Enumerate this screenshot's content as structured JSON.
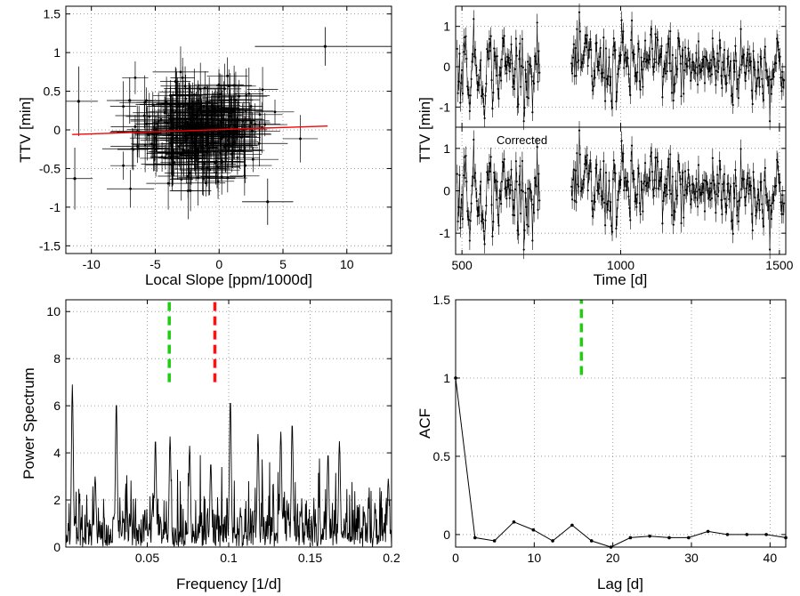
{
  "chart_data": [
    {
      "id": "ttv-vs-slope",
      "type": "scatter",
      "xlabel": "Local Slope [ppm/1000d]",
      "ylabel": "TTV [min]",
      "xlim": [
        -12,
        13.5
      ],
      "ylim": [
        -1.6,
        1.6
      ],
      "xticks": [
        -10,
        -5,
        0,
        5,
        10
      ],
      "yticks": [
        -1.5,
        -1,
        -0.5,
        0,
        0.5,
        1,
        1.5
      ],
      "grid": true,
      "fit_line": {
        "x": [
          -11.5,
          8.5
        ],
        "y": [
          -0.06,
          0.05
        ],
        "color": "#ff0000"
      },
      "outliers": [
        {
          "x": 8.3,
          "y": 1.08,
          "xerr": 5.5,
          "yerr": 0.25
        },
        {
          "x": -11.0,
          "y": 0.37,
          "xerr": 1.5,
          "yerr": 0.45
        },
        {
          "x": -11.3,
          "y": -0.63,
          "xerr": 1.4,
          "yerr": 0.4
        },
        {
          "x": -7.0,
          "y": 0.38,
          "xerr": 1.8,
          "yerr": 0.3
        },
        {
          "x": 3.8,
          "y": -0.93,
          "xerr": 2.0,
          "yerr": 0.3
        }
      ],
      "cloud": {
        "n": 320,
        "x_center": -1.5,
        "x_sd": 2.4,
        "y_center": 0.0,
        "y_sd": 0.3,
        "xerr": 1.8,
        "yerr": 0.25
      }
    },
    {
      "id": "ttv-vs-time",
      "type": "scatter",
      "xlabel": "Time [d]",
      "ylabel": "TTV [min]",
      "xlim": [
        480,
        1520
      ],
      "xticks": [
        500,
        1000,
        1500
      ],
      "subpanels": [
        {
          "label": "",
          "ylim": [
            -1.5,
            1.5
          ],
          "yticks": [
            -1,
            0,
            1
          ]
        },
        {
          "label": "Corrected",
          "ylim": [
            -1.5,
            1.5
          ],
          "yticks": [
            -1,
            0,
            1
          ]
        }
      ],
      "segments": [
        [
          485,
          745
        ],
        [
          845,
          1515
        ]
      ],
      "cadence_days": 2.47,
      "scatter_sd": 0.45,
      "yerr": 0.22,
      "grid": true
    },
    {
      "id": "power-spectrum",
      "type": "line",
      "xlabel": "Frequency [1/d]",
      "ylabel": "Power Spectrum",
      "xlim": [
        0,
        0.2
      ],
      "ylim": [
        0,
        10.5
      ],
      "xticks": [
        0.05,
        0.1,
        0.15,
        0.2
      ],
      "yticks": [
        0,
        2,
        4,
        6,
        8,
        10
      ],
      "grid": true,
      "peaks": [
        {
          "f": 0.004,
          "p": 6.9
        },
        {
          "f": 0.031,
          "p": 6.2
        },
        {
          "f": 0.101,
          "p": 6.3
        },
        {
          "f": 0.055,
          "p": 4.6
        },
        {
          "f": 0.064,
          "p": 4.7
        },
        {
          "f": 0.076,
          "p": 4.3
        },
        {
          "f": 0.118,
          "p": 4.8
        },
        {
          "f": 0.132,
          "p": 4.9
        },
        {
          "f": 0.139,
          "p": 5.3
        },
        {
          "f": 0.161,
          "p": 4.0
        },
        {
          "f": 0.168,
          "p": 4.5
        },
        {
          "f": 0.018,
          "p": 3.0
        },
        {
          "f": 0.089,
          "p": 3.6
        },
        {
          "f": 0.198,
          "p": 2.9
        }
      ],
      "markers": [
        {
          "x": 0.0635,
          "y0": 7.0,
          "y1": 10.4,
          "color": "#22cc11"
        },
        {
          "x": 0.0915,
          "y0": 7.0,
          "y1": 10.4,
          "color": "#ff1111"
        }
      ]
    },
    {
      "id": "acf",
      "type": "line",
      "xlabel": "Lag [d]",
      "ylabel": "ACF",
      "xlim": [
        0,
        42
      ],
      "ylim": [
        -0.08,
        1.5
      ],
      "xticks": [
        0,
        10,
        20,
        30,
        40
      ],
      "yticks": [
        0,
        0.5,
        1,
        1.5
      ],
      "grid": true,
      "x": [
        0,
        2.47,
        4.94,
        7.41,
        9.88,
        12.35,
        14.82,
        17.29,
        19.76,
        22.23,
        24.7,
        27.17,
        29.64,
        32.11,
        34.58,
        37.05,
        39.52,
        42
      ],
      "y": [
        1.0,
        -0.02,
        -0.04,
        0.08,
        0.03,
        -0.04,
        0.06,
        -0.04,
        -0.08,
        -0.02,
        -0.01,
        -0.02,
        -0.02,
        0.02,
        0.0,
        0.0,
        0.0,
        -0.02
      ],
      "markers": [
        {
          "x": 16.0,
          "y0": 1.02,
          "y1": 1.5,
          "color": "#22cc11"
        }
      ]
    }
  ]
}
